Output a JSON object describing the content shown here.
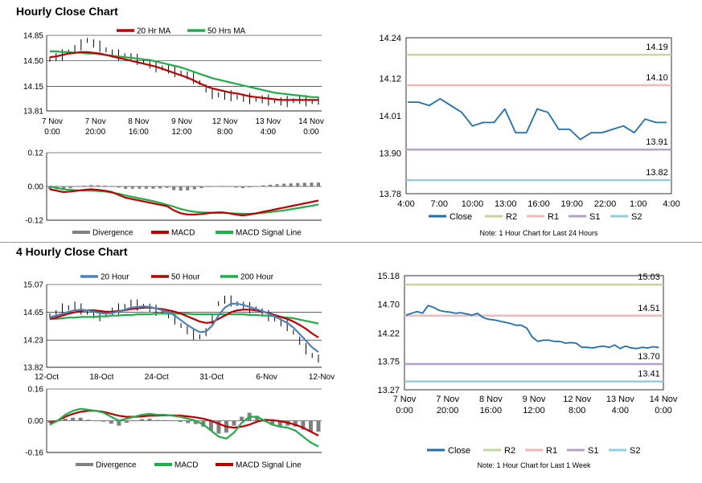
{
  "section1_title": "Hourly Close Chart",
  "section2_title": "4 Hourly Close Chart",
  "colors": {
    "red": "#c00000",
    "green": "#1fae49",
    "blue": "#4f81bd",
    "close_blue": "#1f6fad",
    "r2": "#c3d69b",
    "r1": "#f2b8b8",
    "s1": "#b2a1c7",
    "s2": "#93cddd",
    "price_black": "#000000",
    "divergence": "#808080"
  },
  "chart_data": [
    {
      "id": "hourly_price",
      "type": "line",
      "legend": [
        {
          "label": "20 Hr MA",
          "color": "red"
        },
        {
          "label": "50 Hrs MA",
          "color": "green"
        }
      ],
      "yticks": [
        "14.85",
        "14.50",
        "14.15",
        "13.81"
      ],
      "ylim": [
        13.81,
        14.85
      ],
      "xlabels": [
        [
          "7 Nov",
          "0:00"
        ],
        [
          "7 Nov",
          "20:00"
        ],
        [
          "8 Nov",
          "16:00"
        ],
        [
          "9 Nov",
          "12:00"
        ],
        [
          "12 Nov",
          "8:00"
        ],
        [
          "13 Nov",
          "4:00"
        ],
        [
          "14 Nov",
          "0:00"
        ]
      ],
      "price": [
        14.52,
        14.55,
        14.58,
        14.62,
        14.66,
        14.72,
        14.78,
        14.74,
        14.7,
        14.65,
        14.6,
        14.58,
        14.57,
        14.55,
        14.52,
        14.48,
        14.45,
        14.42,
        14.4,
        14.38,
        14.35,
        14.33,
        14.3,
        14.26,
        14.2,
        14.12,
        14.05,
        14.03,
        14.02,
        14.02,
        14.0,
        13.99,
        13.98,
        13.97,
        13.97,
        13.96,
        13.95,
        13.94,
        13.94,
        13.95,
        13.96,
        13.95,
        13.94,
        13.95
      ],
      "ma20": [
        14.55,
        14.56,
        14.58,
        14.6,
        14.61,
        14.62,
        14.62,
        14.61,
        14.6,
        14.58,
        14.56,
        14.54,
        14.52,
        14.5,
        14.48,
        14.46,
        14.44,
        14.42,
        14.39,
        14.36,
        14.33,
        14.3,
        14.27,
        14.23,
        14.19,
        14.15,
        14.12,
        14.1,
        14.08,
        14.06,
        14.05,
        14.03,
        14.01,
        14.0,
        13.99,
        13.98,
        13.97,
        13.96,
        13.96,
        13.96,
        13.96,
        13.96,
        13.96,
        13.96
      ],
      "ma50": [
        14.63,
        14.63,
        14.62,
        14.62,
        14.61,
        14.61,
        14.6,
        14.6,
        14.59,
        14.58,
        14.57,
        14.56,
        14.55,
        14.54,
        14.53,
        14.52,
        14.51,
        14.49,
        14.47,
        14.45,
        14.43,
        14.41,
        14.38,
        14.35,
        14.32,
        14.29,
        14.26,
        14.24,
        14.22,
        14.2,
        14.18,
        14.16,
        14.14,
        14.12,
        14.1,
        14.08,
        14.06,
        14.05,
        14.04,
        14.03,
        14.02,
        14.01,
        14.0,
        14.0
      ]
    },
    {
      "id": "hourly_macd",
      "type": "line",
      "legend": [
        {
          "label": "Divergence",
          "color": "divergence"
        },
        {
          "label": "MACD",
          "color": "red"
        },
        {
          "label": "MACD Signal Line",
          "color": "green"
        }
      ],
      "yticks": [
        "0.12",
        "0.00",
        "-0.12"
      ],
      "ylim": [
        -0.12,
        0.12
      ],
      "macd": [
        -0.01,
        -0.015,
        -0.02,
        -0.018,
        -0.015,
        -0.012,
        -0.01,
        -0.012,
        -0.015,
        -0.02,
        -0.03,
        -0.04,
        -0.045,
        -0.05,
        -0.055,
        -0.06,
        -0.065,
        -0.07,
        -0.085,
        -0.095,
        -0.1,
        -0.1,
        -0.098,
        -0.095,
        -0.093,
        -0.092,
        -0.095,
        -0.1,
        -0.103,
        -0.1,
        -0.095,
        -0.09,
        -0.085,
        -0.08,
        -0.075,
        -0.07,
        -0.065,
        -0.06,
        -0.055,
        -0.05
      ],
      "signal": [
        0.0,
        -0.005,
        -0.01,
        -0.012,
        -0.014,
        -0.015,
        -0.015,
        -0.016,
        -0.018,
        -0.022,
        -0.026,
        -0.032,
        -0.037,
        -0.042,
        -0.047,
        -0.052,
        -0.058,
        -0.065,
        -0.072,
        -0.08,
        -0.086,
        -0.09,
        -0.092,
        -0.093,
        -0.094,
        -0.094,
        -0.095,
        -0.096,
        -0.097,
        -0.097,
        -0.096,
        -0.094,
        -0.091,
        -0.088,
        -0.085,
        -0.081,
        -0.077,
        -0.073,
        -0.069,
        -0.064
      ],
      "divergence": [
        -0.01,
        -0.01,
        -0.01,
        -0.006,
        -0.001,
        0.003,
        0.005,
        0.004,
        0.003,
        0.002,
        -0.004,
        -0.008,
        -0.008,
        -0.008,
        -0.008,
        -0.008,
        -0.007,
        -0.005,
        -0.013,
        -0.015,
        -0.014,
        -0.01,
        -0.006,
        -0.002,
        0.001,
        0.002,
        0.0,
        -0.004,
        -0.006,
        -0.003,
        0.001,
        0.004,
        0.006,
        0.008,
        0.01,
        0.011,
        0.012,
        0.013,
        0.014,
        0.014
      ]
    },
    {
      "id": "hourly_levels",
      "type": "line",
      "yticks": [
        "14.24",
        "14.12",
        "14.01",
        "13.90",
        "13.78"
      ],
      "ylim": [
        13.78,
        14.24
      ],
      "xticks": [
        "4:00",
        "7:00",
        "10:00",
        "13:00",
        "16:00",
        "19:00",
        "22:00",
        "1:00",
        "4:00"
      ],
      "close": [
        14.05,
        14.05,
        14.04,
        14.06,
        14.04,
        14.02,
        13.98,
        13.99,
        13.99,
        14.03,
        13.96,
        13.96,
        14.03,
        14.02,
        13.97,
        13.97,
        13.94,
        13.96,
        13.96,
        13.97,
        13.98,
        13.96,
        14.0,
        13.99,
        13.99
      ],
      "levels": [
        {
          "name": "R2",
          "value": 14.19,
          "label": "14.19",
          "color": "r2"
        },
        {
          "name": "R1",
          "value": 14.1,
          "label": "14.10",
          "color": "r1"
        },
        {
          "name": "S1",
          "value": 13.91,
          "label": "13.91",
          "color": "s1"
        },
        {
          "name": "S2",
          "value": 13.82,
          "label": "13.82",
          "color": "s2"
        }
      ],
      "legend": [
        {
          "label": "Close",
          "color": "close_blue"
        },
        {
          "label": "R2",
          "color": "r2"
        },
        {
          "label": "R1",
          "color": "r1"
        },
        {
          "label": "S1",
          "color": "s1"
        },
        {
          "label": "S2",
          "color": "s2"
        }
      ],
      "note": "Note: 1 Hour Chart for Last 24 Hours"
    },
    {
      "id": "four_hourly_price",
      "type": "line",
      "legend": [
        {
          "label": "20 Hour",
          "color": "blue"
        },
        {
          "label": "50 Hour",
          "color": "red"
        },
        {
          "label": "200 Hour",
          "color": "green"
        }
      ],
      "yticks": [
        "15.07",
        "14.65",
        "14.23",
        "13.82"
      ],
      "ylim": [
        13.82,
        15.07
      ],
      "xticks": [
        "12-Oct",
        "18-Oct",
        "24-Oct",
        "31-Oct",
        "6-Nov",
        "12-Nov"
      ],
      "price": [
        14.6,
        14.62,
        14.7,
        14.72,
        14.75,
        14.7,
        14.65,
        14.62,
        14.6,
        14.63,
        14.66,
        14.7,
        14.74,
        14.78,
        14.76,
        14.74,
        14.72,
        14.68,
        14.66,
        14.62,
        14.55,
        14.45,
        14.38,
        14.32,
        14.28,
        14.35,
        14.55,
        14.78,
        14.84,
        14.82,
        14.78,
        14.75,
        14.72,
        14.7,
        14.65,
        14.6,
        14.55,
        14.5,
        14.45,
        14.35,
        14.22,
        14.1,
        14.0,
        13.95
      ],
      "ma20": [
        14.58,
        14.6,
        14.63,
        14.66,
        14.68,
        14.69,
        14.68,
        14.66,
        14.64,
        14.63,
        14.64,
        14.66,
        14.69,
        14.72,
        14.73,
        14.74,
        14.73,
        14.71,
        14.68,
        14.65,
        14.6,
        14.53,
        14.46,
        14.4,
        14.35,
        14.36,
        14.45,
        14.6,
        14.72,
        14.78,
        14.78,
        14.76,
        14.73,
        14.7,
        14.67,
        14.63,
        14.59,
        14.54,
        14.49,
        14.42,
        14.32,
        14.22,
        14.12,
        14.05
      ],
      "ma50": [
        14.55,
        14.57,
        14.6,
        14.63,
        14.65,
        14.67,
        14.68,
        14.68,
        14.67,
        14.66,
        14.66,
        14.67,
        14.68,
        14.7,
        14.71,
        14.72,
        14.72,
        14.71,
        14.7,
        14.68,
        14.66,
        14.63,
        14.59,
        14.55,
        14.51,
        14.49,
        14.5,
        14.55,
        14.6,
        14.65,
        14.68,
        14.69,
        14.69,
        14.68,
        14.66,
        14.64,
        14.61,
        14.58,
        14.55,
        14.51,
        14.46,
        14.4,
        14.33,
        14.27
      ],
      "ma200": [
        14.55,
        14.55,
        14.56,
        14.57,
        14.57,
        14.58,
        14.58,
        14.58,
        14.59,
        14.59,
        14.6,
        14.6,
        14.61,
        14.61,
        14.62,
        14.62,
        14.62,
        14.63,
        14.63,
        14.63,
        14.63,
        14.63,
        14.63,
        14.62,
        14.62,
        14.62,
        14.62,
        14.62,
        14.62,
        14.62,
        14.62,
        14.62,
        14.61,
        14.61,
        14.6,
        14.6,
        14.59,
        14.58,
        14.57,
        14.56,
        14.54,
        14.52,
        14.5,
        14.48
      ]
    },
    {
      "id": "four_hourly_macd",
      "type": "line",
      "legend": [
        {
          "label": "Divergence",
          "color": "divergence"
        },
        {
          "label": "MACD",
          "color": "green"
        },
        {
          "label": "MACD Signal Line",
          "color": "red"
        }
      ],
      "yticks": [
        "0.16",
        "0.00",
        "-0.16"
      ],
      "ylim": [
        -0.16,
        0.16
      ],
      "macd": [
        -0.02,
        0.0,
        0.03,
        0.05,
        0.06,
        0.055,
        0.05,
        0.04,
        0.02,
        0.0,
        0.01,
        0.02,
        0.03,
        0.035,
        0.03,
        0.03,
        0.025,
        0.02,
        0.01,
        0.0,
        -0.02,
        -0.05,
        -0.08,
        -0.09,
        -0.06,
        -0.01,
        0.02,
        0.02,
        0.0,
        -0.02,
        -0.03,
        -0.035,
        -0.05,
        -0.08,
        -0.11,
        -0.13
      ],
      "signal": [
        -0.01,
        0.0,
        0.02,
        0.035,
        0.045,
        0.05,
        0.05,
        0.045,
        0.035,
        0.025,
        0.02,
        0.02,
        0.022,
        0.025,
        0.026,
        0.027,
        0.027,
        0.026,
        0.022,
        0.017,
        0.01,
        0.0,
        -0.015,
        -0.03,
        -0.035,
        -0.03,
        -0.02,
        -0.005,
        0.005,
        0.003,
        -0.002,
        -0.01,
        -0.02,
        -0.035,
        -0.055,
        -0.075
      ],
      "divergence": [
        -0.01,
        0.0,
        0.01,
        0.015,
        0.015,
        0.005,
        0.0,
        -0.005,
        -0.015,
        -0.025,
        -0.01,
        0.0,
        0.008,
        0.01,
        0.004,
        0.003,
        -0.002,
        -0.006,
        -0.012,
        -0.017,
        -0.03,
        -0.05,
        -0.065,
        -0.06,
        -0.025,
        0.02,
        0.04,
        0.025,
        -0.005,
        -0.023,
        -0.028,
        -0.025,
        -0.03,
        -0.045,
        -0.055,
        -0.055
      ]
    },
    {
      "id": "four_hourly_levels",
      "type": "line",
      "yticks": [
        "15.18",
        "14.70",
        "14.22",
        "13.75",
        "13.27"
      ],
      "ylim": [
        13.27,
        15.18
      ],
      "xlabels": [
        [
          "7 Nov",
          "0:00"
        ],
        [
          "7 Nov",
          "20:00"
        ],
        [
          "8 Nov",
          "16:00"
        ],
        [
          "9 Nov",
          "12:00"
        ],
        [
          "12 Nov",
          "8:00"
        ],
        [
          "13 Nov",
          "4:00"
        ],
        [
          "14 Nov",
          "0:00"
        ]
      ],
      "close": [
        14.52,
        14.55,
        14.58,
        14.55,
        14.68,
        14.65,
        14.6,
        14.58,
        14.57,
        14.55,
        14.56,
        14.54,
        14.52,
        14.55,
        14.48,
        14.45,
        14.44,
        14.42,
        14.4,
        14.38,
        14.35,
        14.35,
        14.3,
        14.15,
        14.08,
        14.1,
        14.1,
        14.08,
        14.08,
        14.05,
        14.06,
        14.05,
        13.98,
        13.98,
        13.97,
        13.99,
        14.0,
        13.98,
        14.02,
        13.96,
        14.0,
        13.97,
        13.96,
        13.98,
        13.97,
        13.99,
        13.98
      ],
      "levels": [
        {
          "name": "R2",
          "value": 15.03,
          "label": "15.03",
          "color": "r2"
        },
        {
          "name": "R1",
          "value": 14.51,
          "label": "14.51",
          "color": "r1"
        },
        {
          "name": "S1",
          "value": 13.7,
          "label": "13.70",
          "color": "s1"
        },
        {
          "name": "S2",
          "value": 13.41,
          "label": "13.41",
          "color": "s2"
        }
      ],
      "legend": [
        {
          "label": "Close",
          "color": "close_blue"
        },
        {
          "label": "R2",
          "color": "r2"
        },
        {
          "label": "R1",
          "color": "r1"
        },
        {
          "label": "S1",
          "color": "s1"
        },
        {
          "label": "S2",
          "color": "s2"
        }
      ],
      "note": "Note: 1 Hour Chart for Last 1 Week"
    }
  ]
}
